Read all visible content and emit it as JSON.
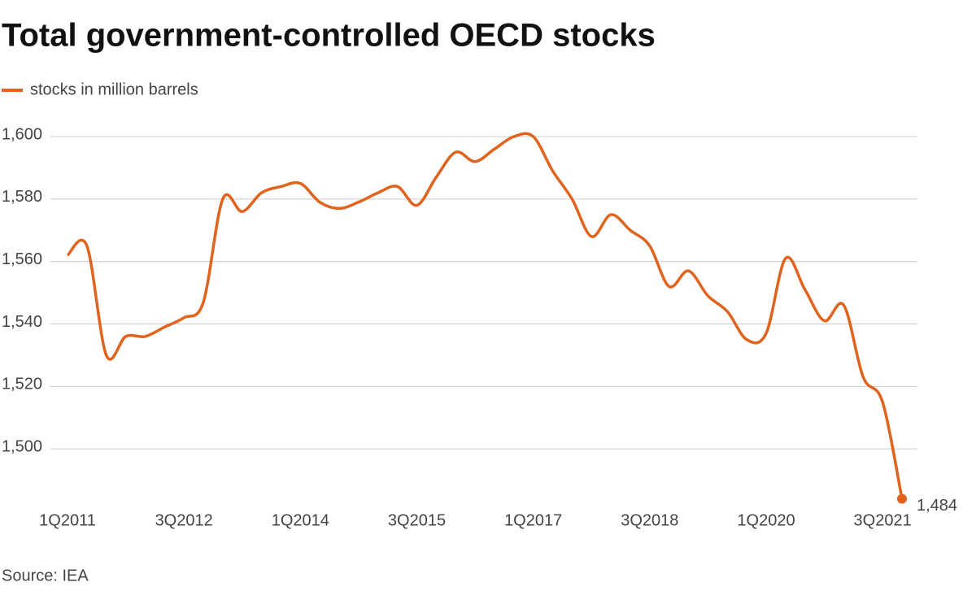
{
  "chart_data": {
    "type": "line",
    "title": "Total government-controlled OECD stocks",
    "source": "Source: IEA",
    "categories": [
      "1Q2011",
      null,
      null,
      null,
      null,
      null,
      "3Q2012",
      null,
      null,
      null,
      null,
      null,
      "1Q2014",
      null,
      null,
      null,
      null,
      null,
      "3Q2015",
      null,
      null,
      null,
      null,
      null,
      "1Q2017",
      null,
      null,
      null,
      null,
      null,
      "3Q2018",
      null,
      null,
      null,
      null,
      null,
      "1Q2020",
      null,
      null,
      null,
      null,
      null,
      "3Q2021",
      null
    ],
    "series": [
      {
        "name": "stocks in million barrels",
        "color": "#e0631e",
        "values": [
          1562,
          1565,
          1530,
          1536,
          1536,
          1539,
          1542,
          1547,
          1580,
          1576,
          1582,
          1584,
          1585,
          1579,
          1577,
          1579,
          1582,
          1584,
          1578,
          1587,
          1595,
          1592,
          1596,
          1600,
          1600,
          1589,
          1580,
          1568,
          1575,
          1570,
          1565,
          1552,
          1557,
          1549,
          1544,
          1535,
          1537,
          1561,
          1551,
          1541,
          1546,
          1523,
          1515,
          1484
        ],
        "value_labels": [
          null,
          null,
          null,
          null,
          null,
          null,
          null,
          null,
          null,
          null,
          null,
          null,
          null,
          null,
          null,
          null,
          null,
          null,
          null,
          null,
          null,
          null,
          null,
          null,
          null,
          null,
          null,
          null,
          null,
          null,
          null,
          null,
          null,
          null,
          null,
          null,
          null,
          null,
          null,
          null,
          null,
          null,
          null,
          "1,484"
        ]
      }
    ],
    "ylim": [
      1480,
      1600
    ],
    "yticks": [
      {
        "value": 1500,
        "label": "1,500"
      },
      {
        "value": 1520,
        "label": "1,520"
      },
      {
        "value": 1540,
        "label": "1,540"
      },
      {
        "value": 1560,
        "label": "1,560"
      },
      {
        "value": 1580,
        "label": "1,580"
      },
      {
        "value": 1600,
        "label": "1,600"
      }
    ],
    "grid": true
  }
}
